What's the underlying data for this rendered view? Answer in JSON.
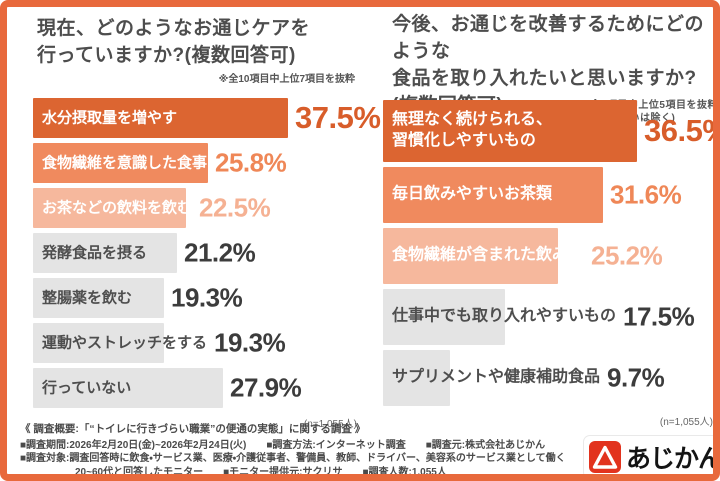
{
  "colors": {
    "frame": "#E8693C",
    "bar_dark": "#DC6531",
    "bar_mid": "#F08A5E",
    "bar_light": "#F6B89D",
    "bar_gray": "#E4E4E4",
    "pct_gray_text": "#3C3C3C",
    "title_text": "#4D4D4D",
    "logo_red": "#E2331E"
  },
  "charts": [
    {
      "title_lines": [
        "現在、どのようなお通じケアを",
        "行っていますか?(複数回答可)"
      ],
      "note_lines": [
        "※全10項目中上位7項目を抜粋"
      ],
      "sample_note": "(n=1,055人)",
      "items": [
        {
          "label": "水分摂取量を増やす",
          "value": 37.5,
          "display": "37.5%",
          "tone": "dark"
        },
        {
          "label": "食物繊維を意識した食事",
          "value": 25.8,
          "display": "25.8%",
          "tone": "mid"
        },
        {
          "label": "お茶などの飲料を飲む",
          "value": 22.5,
          "display": "22.5%",
          "tone": "light"
        },
        {
          "label": "発酵食品を摂る",
          "value": 21.2,
          "display": "21.2%",
          "tone": "gray"
        },
        {
          "label": "整腸薬を飲む",
          "value": 19.3,
          "display": "19.3%",
          "tone": "gray"
        },
        {
          "label": "運動やストレッチをする",
          "value": 19.3,
          "display": "19.3%",
          "tone": "gray"
        },
        {
          "label": "行っていない",
          "value": 27.9,
          "display": "27.9%",
          "tone": "gray"
        }
      ]
    },
    {
      "title_lines": [
        "今後、お通じを改善するためにどのような",
        "食品を取り入れたいと思いますか?",
        "(複数回答可)"
      ],
      "note_lines": [
        "※全7項目中上位5項目を抜粋",
        "(特にないは除く)"
      ],
      "sample_note": "(n=1,055人)",
      "items": [
        {
          "label": "無理なく続けられる、\n習慣化しやすいもの",
          "value": 36.5,
          "display": "36.5%",
          "tone": "dark"
        },
        {
          "label": "毎日飲みやすいお茶類",
          "value": 31.6,
          "display": "31.6%",
          "tone": "mid"
        },
        {
          "label": "食物繊維が含まれた飲み物",
          "value": 25.2,
          "display": "25.2%",
          "tone": "light"
        },
        {
          "label": "仕事中でも取り入れやすいもの",
          "value": 17.5,
          "display": "17.5%",
          "tone": "gray"
        },
        {
          "label": "サプリメントや健康補助食品",
          "value": 9.7,
          "display": "9.7%",
          "tone": "gray"
        }
      ]
    }
  ],
  "chart_data": [
    {
      "type": "bar",
      "orientation": "horizontal",
      "unit": "%",
      "title": "現在、どのようなお通じケアを行っていますか?(複数回答可)",
      "note": "※全10項目中上位7項目を抜粋",
      "sample": "n=1,055人",
      "categories": [
        "水分摂取量を増やす",
        "食物繊維を意識した食事",
        "お茶などの飲料を飲む",
        "発酵食品を摂る",
        "整腸薬を飲む",
        "運動やストレッチをする",
        "行っていない"
      ],
      "values": [
        37.5,
        25.8,
        22.5,
        21.2,
        19.3,
        19.3,
        27.9
      ],
      "xlim": [
        0,
        40
      ],
      "grid": false,
      "legend": "none"
    },
    {
      "type": "bar",
      "orientation": "horizontal",
      "unit": "%",
      "title": "今後、お通じを改善するためにどのような食品を取り入れたいと思いますか?(複数回答可)",
      "note": "※全7項目中上位5項目を抜粋(特にないは除く)",
      "sample": "n=1,055人",
      "categories": [
        "無理なく続けられる、習慣化しやすいもの",
        "毎日飲みやすいお茶類",
        "食物繊維が含まれた飲み物",
        "仕事中でも取り入れやすいもの",
        "サプリメントや健康補助食品"
      ],
      "values": [
        36.5,
        31.6,
        25.2,
        17.5,
        9.7
      ],
      "xlim": [
        0,
        40
      ],
      "grid": false,
      "legend": "none"
    }
  ],
  "footer": {
    "heading": "《 調査概要:「“トイレに行きづらい職業”の便通の実態」に関する調査 》",
    "line1": "■調査期間:2026年2月20日(金)~2026年2月24日(火)　　■調査方法:インターネット調査　　■調査元:株式会社あじかん",
    "line2": "■調査対象:調査回答時に飲食・サービス業、医療・介護従事者、警備員、教師、ドライバー、美容系のサービス業として働く",
    "line3": "20~60代と回答したモニター　　■モニター提供元:サクリサ　　■調査人数:1,055人"
  },
  "logo": {
    "name": "あじかん"
  }
}
